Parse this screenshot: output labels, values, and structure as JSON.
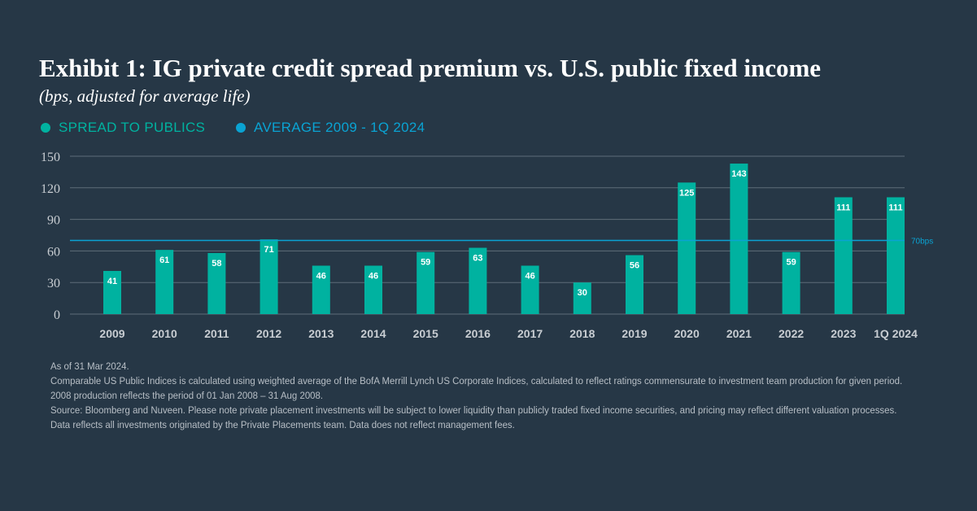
{
  "title": "Exhibit 1: IG private credit spread premium vs. U.S. public fixed income",
  "subtitle": "(bps, adjusted for average life)",
  "legend": [
    {
      "label": "SPREAD TO PUBLICS",
      "color": "#00b2a0"
    },
    {
      "label": "AVERAGE 2009 - 1Q 2024",
      "color": "#0aa3d3"
    }
  ],
  "chart_data": {
    "type": "bar",
    "categories": [
      "2009",
      "2010",
      "2011",
      "2012",
      "2013",
      "2014",
      "2015",
      "2016",
      "2017",
      "2018",
      "2019",
      "2020",
      "2021",
      "2022",
      "2023",
      "1Q 2024"
    ],
    "series": [
      {
        "name": "SPREAD TO PUBLICS",
        "values": [
          41,
          61,
          58,
          71,
          46,
          46,
          59,
          63,
          46,
          30,
          56,
          125,
          143,
          59,
          111,
          111
        ],
        "color": "#00b2a0"
      }
    ],
    "reference_line": {
      "name": "AVERAGE 2009 - 1Q 2024",
      "value": 70,
      "label": "70bps",
      "color": "#0aa3d3"
    },
    "ylim": [
      0,
      150
    ],
    "yticks": [
      0,
      30,
      60,
      90,
      120,
      150
    ],
    "grid": true,
    "legend_position": "top-left",
    "data_labels": true
  },
  "notes": [
    "As of 31 Mar 2024.",
    "Comparable US Public Indices is calculated using weighted average of the BofA Merrill Lynch US Corporate Indices, calculated to reflect ratings commensurate to investment team production for given period.",
    "2008 production reflects the period of 01 Jan 2008 – 31 Aug 2008.",
    "Source: Bloomberg and Nuveen. Please note private placement investments will be subject to lower liquidity than publicly traded fixed income securities, and pricing may reflect different valuation processes.",
    "Data reflects all investments originated by the Private Placements team. Data does not reflect management fees."
  ]
}
